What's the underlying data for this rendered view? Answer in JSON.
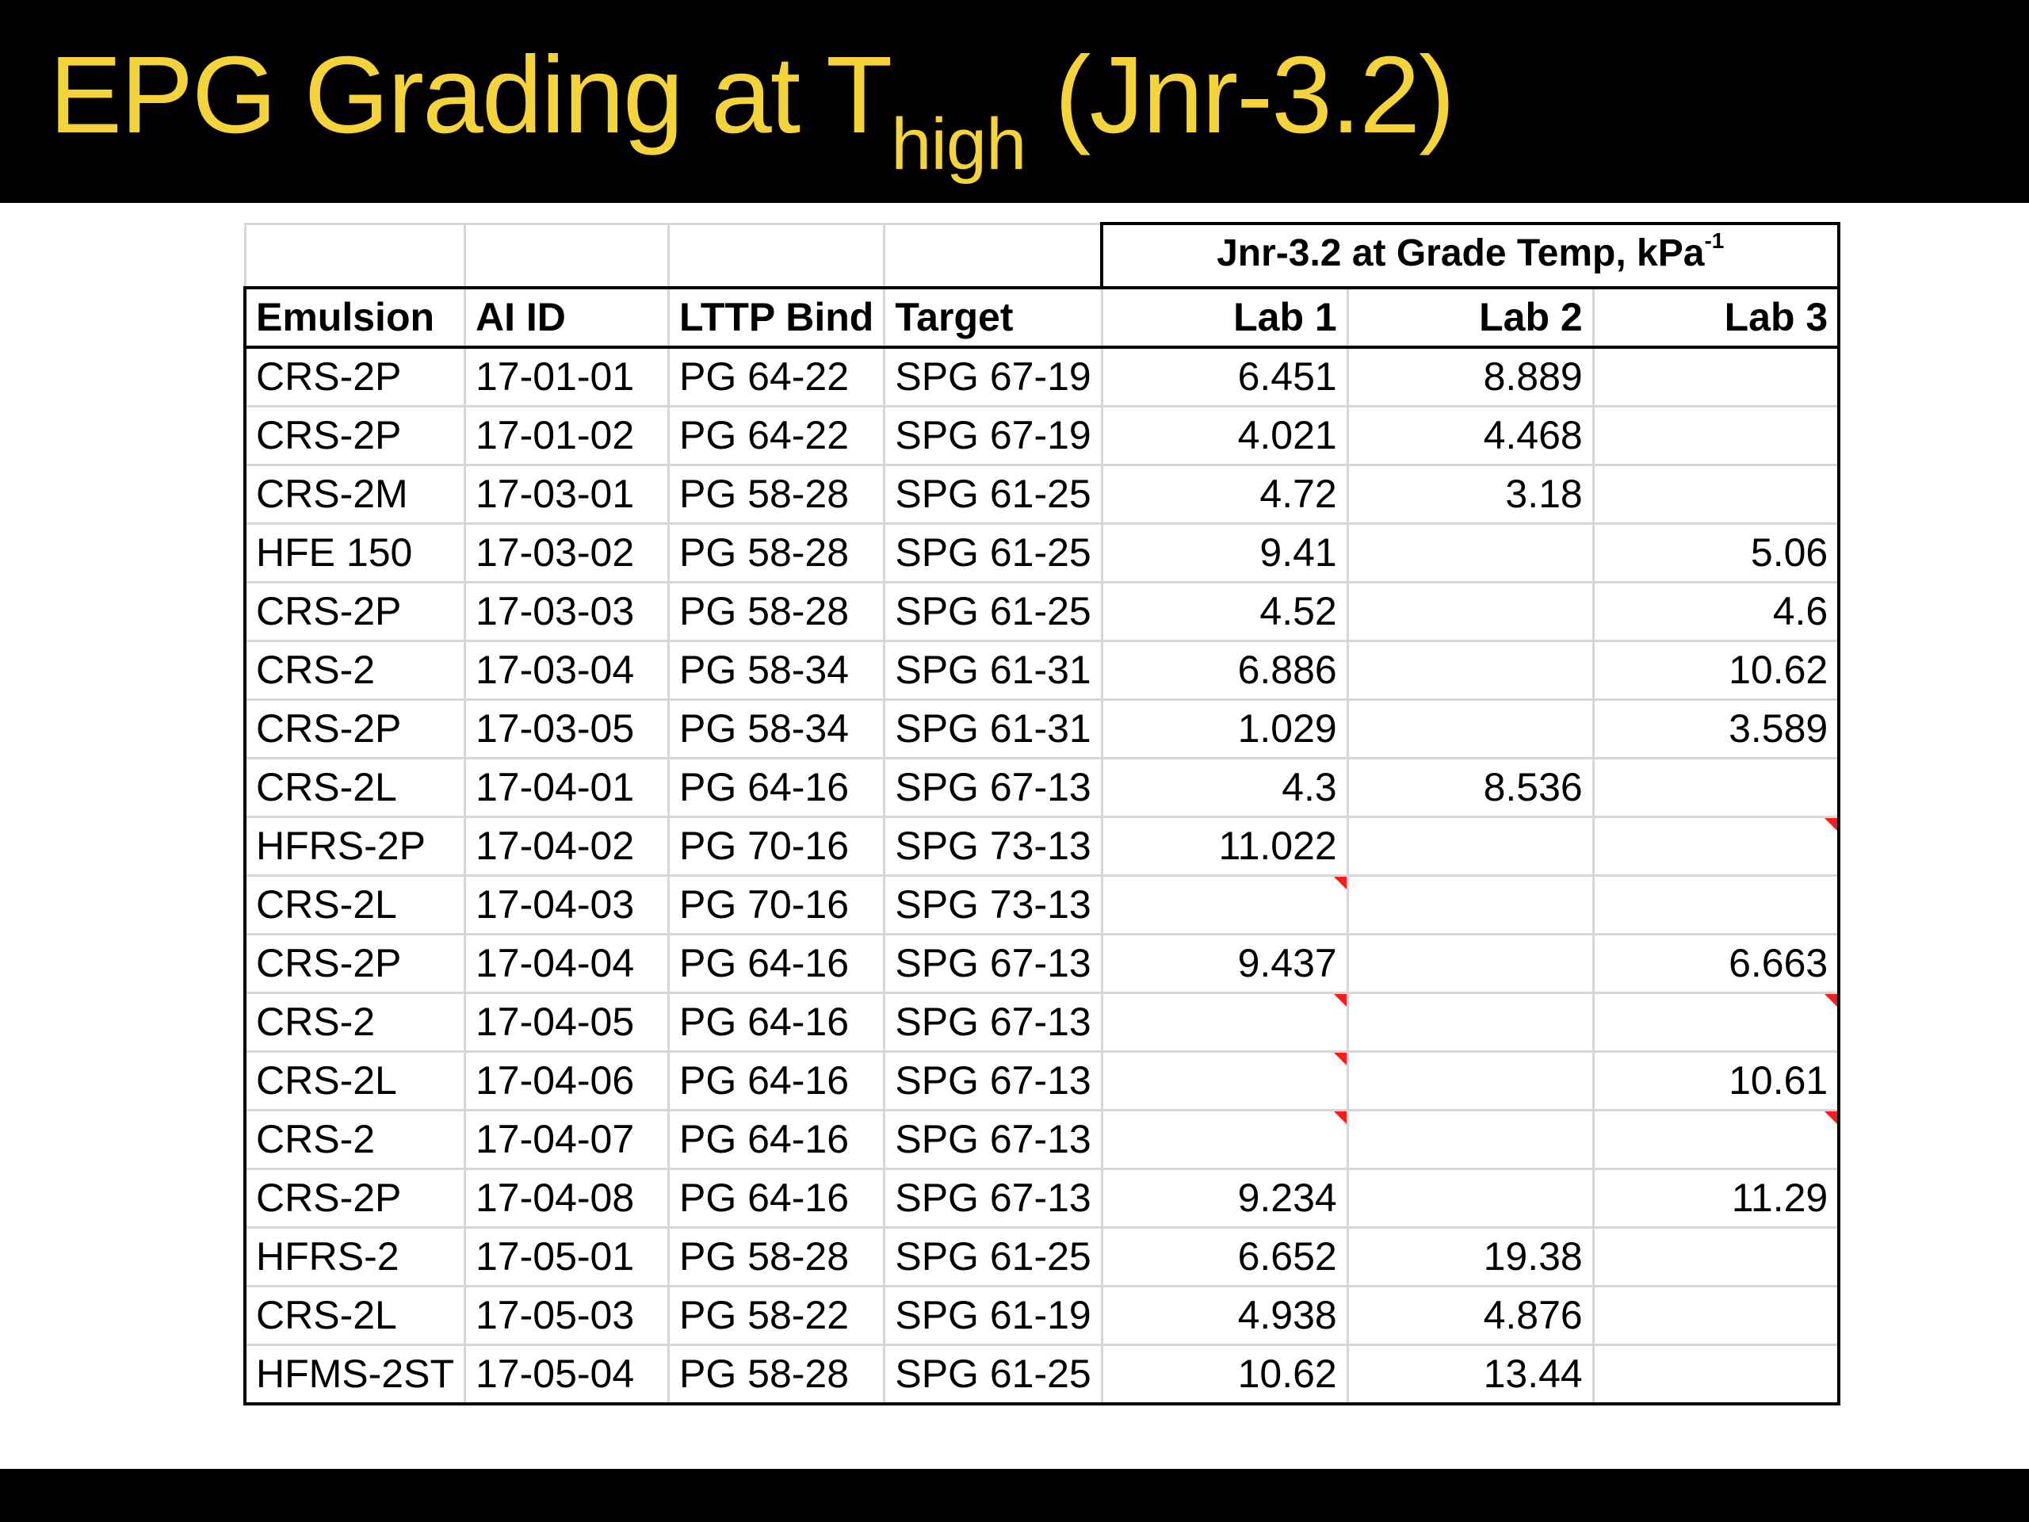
{
  "title": {
    "main": "EPG Grading at T",
    "subscript": "high",
    "suffix": " (Jnr-3.2)"
  },
  "table": {
    "group_header": {
      "label": "Jnr-3.2 at Grade Temp, kPa",
      "superscript": "-1"
    },
    "columns": [
      "Emulsion",
      "AI ID",
      "LTTP Bind",
      "Target",
      "Lab 1",
      "Lab 2",
      "Lab 3"
    ],
    "rows": [
      {
        "cells": [
          "CRS-2P",
          "17-01-01",
          "PG 64-22",
          "SPG 67-19",
          "6.451",
          "8.889",
          ""
        ],
        "flags": []
      },
      {
        "cells": [
          "CRS-2P",
          "17-01-02",
          "PG 64-22",
          "SPG 67-19",
          "4.021",
          "4.468",
          ""
        ],
        "flags": []
      },
      {
        "cells": [
          "CRS-2M",
          "17-03-01",
          "PG 58-28",
          "SPG 61-25",
          "4.72",
          "3.18",
          ""
        ],
        "flags": []
      },
      {
        "cells": [
          "HFE 150",
          "17-03-02",
          "PG 58-28",
          "SPG 61-25",
          "9.41",
          "",
          "5.06"
        ],
        "flags": []
      },
      {
        "cells": [
          "CRS-2P",
          "17-03-03",
          "PG 58-28",
          "SPG 61-25",
          "4.52",
          "",
          "4.6"
        ],
        "flags": []
      },
      {
        "cells": [
          "CRS-2",
          "17-03-04",
          "PG 58-34",
          "SPG 61-31",
          "6.886",
          "",
          "10.62"
        ],
        "flags": []
      },
      {
        "cells": [
          "CRS-2P",
          "17-03-05",
          "PG 58-34",
          "SPG 61-31",
          "1.029",
          "",
          "3.589"
        ],
        "flags": []
      },
      {
        "cells": [
          "CRS-2L",
          "17-04-01",
          "PG 64-16",
          "SPG 67-13",
          "4.3",
          "8.536",
          ""
        ],
        "flags": []
      },
      {
        "cells": [
          "HFRS-2P",
          "17-04-02",
          "PG 70-16",
          "SPG 73-13",
          "11.022",
          "",
          ""
        ],
        "flags": [
          6
        ]
      },
      {
        "cells": [
          "CRS-2L",
          "17-04-03",
          "PG 70-16",
          "SPG 73-13",
          "",
          "",
          ""
        ],
        "flags": [
          4
        ]
      },
      {
        "cells": [
          "CRS-2P",
          "17-04-04",
          "PG 64-16",
          "SPG 67-13",
          "9.437",
          "",
          "6.663"
        ],
        "flags": []
      },
      {
        "cells": [
          "CRS-2",
          "17-04-05",
          "PG 64-16",
          "SPG 67-13",
          "",
          "",
          ""
        ],
        "flags": [
          4,
          6
        ]
      },
      {
        "cells": [
          "CRS-2L",
          "17-04-06",
          "PG 64-16",
          "SPG 67-13",
          "",
          "",
          "10.61"
        ],
        "flags": [
          4
        ]
      },
      {
        "cells": [
          "CRS-2",
          "17-04-07",
          "PG 64-16",
          "SPG 67-13",
          "",
          "",
          ""
        ],
        "flags": [
          4,
          6
        ]
      },
      {
        "cells": [
          "CRS-2P",
          "17-04-08",
          "PG 64-16",
          "SPG 67-13",
          "9.234",
          "",
          "11.29"
        ],
        "flags": []
      },
      {
        "cells": [
          "HFRS-2",
          "17-05-01",
          "PG 58-28",
          "SPG 61-25",
          "6.652",
          "19.38",
          ""
        ],
        "flags": []
      },
      {
        "cells": [
          "CRS-2L",
          "17-05-03",
          "PG 58-22",
          "SPG 61-19",
          "4.938",
          "4.876",
          ""
        ],
        "flags": []
      },
      {
        "cells": [
          "HFMS-2ST",
          "17-05-04",
          "PG 58-28",
          "SPG 61-25",
          "10.62",
          "13.44",
          ""
        ],
        "flags": []
      }
    ]
  },
  "colors": {
    "title_text": "#f5d33a",
    "bar_bg": "#000000",
    "comment_flag": "#ff1a1a"
  }
}
